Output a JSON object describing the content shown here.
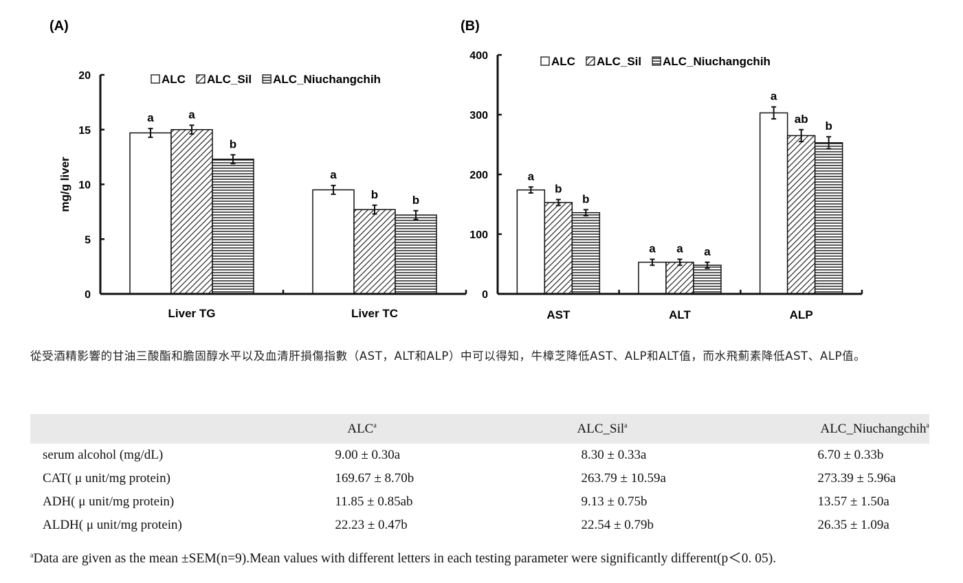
{
  "chart_data": [
    {
      "type": "bar",
      "panel_label": "(A)",
      "title": "",
      "xlabel": "",
      "ylabel": "mg/g liver",
      "ylim": [
        0,
        20
      ],
      "yticks": [
        "0",
        "5",
        "10",
        "15",
        "20"
      ],
      "grid": false,
      "legend_position": "top",
      "categories": [
        "Liver TG",
        "Liver TC"
      ],
      "series": [
        {
          "name": "ALC",
          "pattern": "open",
          "values": [
            14.7,
            9.5
          ],
          "errors": [
            0.4,
            0.4
          ],
          "letters": [
            "a",
            "a"
          ]
        },
        {
          "name": "ALC_Sil",
          "pattern": "diagonal",
          "values": [
            15.0,
            7.7
          ],
          "errors": [
            0.4,
            0.4
          ],
          "letters": [
            "a",
            "b"
          ]
        },
        {
          "name": "ALC_Niuchangchih",
          "pattern": "horizontal",
          "values": [
            12.3,
            7.2
          ],
          "errors": [
            0.4,
            0.4
          ],
          "letters": [
            "b",
            "b"
          ]
        }
      ]
    },
    {
      "type": "bar",
      "panel_label": "(B)",
      "title": "",
      "xlabel": "",
      "ylabel": "",
      "ylim": [
        0,
        400
      ],
      "yticks": [
        "0",
        "100",
        "200",
        "300",
        "400"
      ],
      "grid": false,
      "legend_position": "top",
      "categories": [
        "AST",
        "ALT",
        "ALP"
      ],
      "series": [
        {
          "name": "ALC",
          "pattern": "open",
          "values": [
            174,
            53,
            303
          ],
          "errors": [
            5,
            5,
            10
          ],
          "letters": [
            "a",
            "a",
            "a"
          ]
        },
        {
          "name": "ALC_Sil",
          "pattern": "diagonal",
          "values": [
            153,
            53,
            265
          ],
          "errors": [
            5,
            5,
            10
          ],
          "letters": [
            "b",
            "a",
            "ab"
          ]
        },
        {
          "name": "ALC_Niuchangchih",
          "pattern": "horizontal",
          "values": [
            136,
            48,
            253
          ],
          "errors": [
            5,
            5,
            10
          ],
          "letters": [
            "b",
            "a",
            "b"
          ]
        }
      ]
    }
  ],
  "caption": "從受酒精影響的甘油三酸酯和膽固醇水平以及血清肝損傷指數（AST，ALT和ALP）中可以得知，牛樟芝降低AST、ALP和ALT值，而水飛薊素降低AST、ALP值。",
  "table": {
    "headers": [
      "",
      "ALC",
      "ALC_Sil",
      "ALC_Niuchangchih"
    ],
    "header_marks": [
      "",
      "a",
      "a",
      "a"
    ],
    "rows": [
      [
        "serum alcohol (mg/dL)",
        "9.00 ± 0.30a",
        "8.30 ± 0.33a",
        "6.70 ± 0.33b"
      ],
      [
        "CAT( μ unit/mg protein)",
        "169.67 ± 8.70b",
        "263.79 ± 10.59a",
        "273.39 ± 5.96a"
      ],
      [
        "ADH( μ unit/mg protein)",
        "11.85 ± 0.85ab",
        "9.13 ± 0.75b",
        "13.57 ± 1.50a"
      ],
      [
        "ALDH( μ unit/mg protein)",
        "22.23 ± 0.47b",
        "22.54 ± 0.79b",
        "26.35 ± 1.09a"
      ]
    ]
  },
  "footnote": {
    "mark": "a",
    "text": "Data are given as the mean ±SEM(n=9).Mean values with different letters in each testing parameter were significantly different(p＜0. 05)."
  }
}
